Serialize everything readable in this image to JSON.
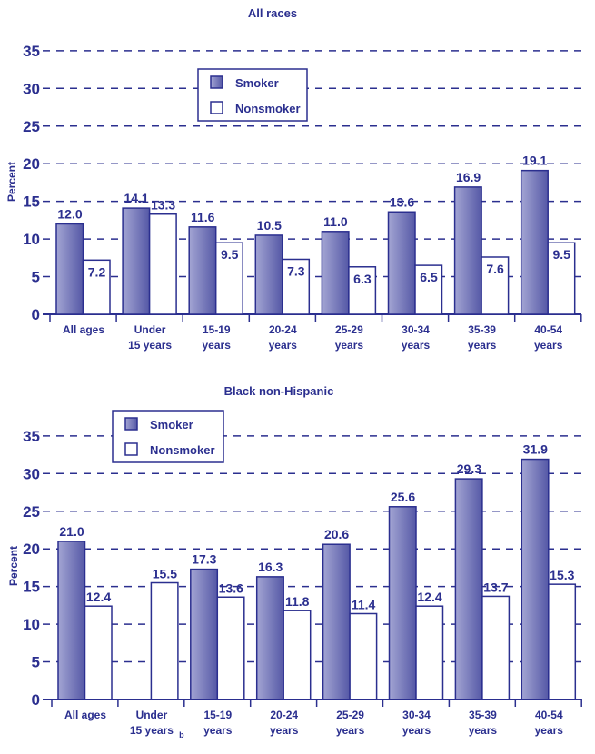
{
  "chart_data": [
    {
      "type": "bar",
      "title": "All races",
      "ylabel": "Percent",
      "ylim": [
        0,
        35
      ],
      "yticks": [
        0,
        5,
        10,
        15,
        20,
        25,
        30,
        35
      ],
      "grid": true,
      "legend_placement": "top-center",
      "categories": [
        [
          "All ages"
        ],
        [
          "Under",
          "15 years"
        ],
        [
          "15-19",
          "years"
        ],
        [
          "20-24",
          "years"
        ],
        [
          "25-29",
          "years"
        ],
        [
          "30-34",
          "years"
        ],
        [
          "35-39",
          "years"
        ],
        [
          "40-54",
          "years"
        ]
      ],
      "series": [
        {
          "name": "Smoker",
          "values": [
            12.0,
            14.1,
            11.6,
            10.5,
            11.0,
            13.6,
            16.9,
            19.1
          ],
          "labels": [
            "12.0",
            "14.1",
            "11.6",
            "10.5",
            "11.0",
            "13.6",
            "16.9",
            "19.1"
          ]
        },
        {
          "name": "Nonsmoker",
          "values": [
            7.2,
            13.3,
            9.5,
            7.3,
            6.3,
            6.5,
            7.6,
            9.5
          ],
          "labels": [
            "7.2",
            "13.3",
            "9.5",
            "7.3",
            "6.3",
            "6.5",
            "7.6",
            "9.5"
          ]
        }
      ]
    },
    {
      "type": "bar",
      "title": "Black non-Hispanic",
      "ylabel": "Percent",
      "ylim": [
        0,
        35
      ],
      "yticks": [
        0,
        5,
        10,
        15,
        20,
        25,
        30,
        35
      ],
      "grid": true,
      "legend_placement": "top-left",
      "categories": [
        [
          "All ages"
        ],
        [
          "Under",
          "15 years",
          "b"
        ],
        [
          "15-19",
          "years"
        ],
        [
          "20-24",
          "years"
        ],
        [
          "25-29",
          "years"
        ],
        [
          "30-34",
          "years"
        ],
        [
          "35-39",
          "years"
        ],
        [
          "40-54",
          "years"
        ]
      ],
      "series": [
        {
          "name": "Smoker",
          "values": [
            21.0,
            null,
            17.3,
            16.3,
            20.6,
            25.6,
            29.3,
            31.9
          ],
          "labels": [
            "21.0",
            "",
            "17.3",
            "16.3",
            "20.6",
            "25.6",
            "29.3",
            "31.9"
          ]
        },
        {
          "name": "Nonsmoker",
          "values": [
            12.4,
            15.5,
            13.6,
            11.8,
            11.4,
            12.4,
            13.7,
            15.3
          ],
          "labels": [
            "12.4",
            "15.5",
            "13.6",
            "11.8",
            "11.4",
            "12.4",
            "13.7",
            "15.3"
          ]
        }
      ]
    }
  ],
  "colors": {
    "ink": "#2b2f8f",
    "smoker_light": "#a3a5d3",
    "smoker_dark": "#5558a6",
    "nonsmoker": "#ffffff"
  }
}
